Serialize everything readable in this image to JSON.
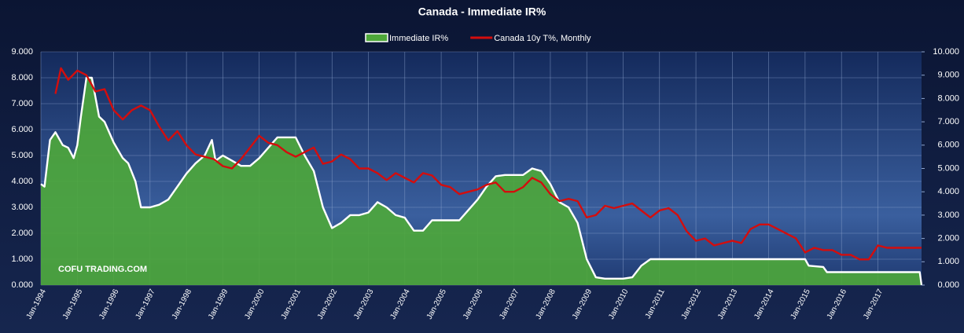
{
  "chart_data": {
    "type": "line",
    "title": "Canada - Immediate IR%",
    "watermark": "COFU TRADING.COM",
    "legend": "top",
    "grid": true,
    "xlim": [
      1994,
      2018.2
    ],
    "xticks": [
      {
        "value": 1994,
        "label": "Jan-1994"
      },
      {
        "value": 1995,
        "label": "Jan-1995"
      },
      {
        "value": 1996,
        "label": "Jan-1996"
      },
      {
        "value": 1997,
        "label": "Jan-1997"
      },
      {
        "value": 1998,
        "label": "Jan-1998"
      },
      {
        "value": 1999,
        "label": "Jan-1999"
      },
      {
        "value": 2000,
        "label": "Jan-2000"
      },
      {
        "value": 2001,
        "label": "Jan-2001"
      },
      {
        "value": 2002,
        "label": "Jan-2002"
      },
      {
        "value": 2003,
        "label": "Jan-2003"
      },
      {
        "value": 2004,
        "label": "Jan-2004"
      },
      {
        "value": 2005,
        "label": "Jan-2005"
      },
      {
        "value": 2006,
        "label": "Jan-2006"
      },
      {
        "value": 2007,
        "label": "Jan-2007"
      },
      {
        "value": 2008,
        "label": "Jan-2008"
      },
      {
        "value": 2009,
        "label": "Jan-2009"
      },
      {
        "value": 2010,
        "label": "Jan-2010"
      },
      {
        "value": 2011,
        "label": "Jan-2011"
      },
      {
        "value": 2012,
        "label": "Jan-2012"
      },
      {
        "value": 2013,
        "label": "Jan-2013"
      },
      {
        "value": 2014,
        "label": "Jan-2014"
      },
      {
        "value": 2015,
        "label": "Jan-2015"
      },
      {
        "value": 2016,
        "label": "Jan-2016"
      },
      {
        "value": 2017,
        "label": "Jan-2017"
      }
    ],
    "ylim": [
      0,
      9
    ],
    "yticks": [
      {
        "value": 0,
        "label": "0.000"
      },
      {
        "value": 1,
        "label": "1.000"
      },
      {
        "value": 2,
        "label": "2.000"
      },
      {
        "value": 3,
        "label": "3.000"
      },
      {
        "value": 4,
        "label": "4.000"
      },
      {
        "value": 5,
        "label": "5.000"
      },
      {
        "value": 6,
        "label": "6.000"
      },
      {
        "value": 7,
        "label": "7.000"
      },
      {
        "value": 8,
        "label": "8.000"
      },
      {
        "value": 9,
        "label": "9.000"
      }
    ],
    "y2lim": [
      0,
      10
    ],
    "y2ticks": [
      {
        "value": 0,
        "label": "0.000"
      },
      {
        "value": 1,
        "label": "1.000"
      },
      {
        "value": 2,
        "label": "2.000"
      },
      {
        "value": 3,
        "label": "3.000"
      },
      {
        "value": 4,
        "label": "4.000"
      },
      {
        "value": 5,
        "label": "5.000"
      },
      {
        "value": 6,
        "label": "6.000"
      },
      {
        "value": 7,
        "label": "7.000"
      },
      {
        "value": 8,
        "label": "8.000"
      },
      {
        "value": 9,
        "label": "9.000"
      },
      {
        "value": 10,
        "label": "10.000"
      }
    ],
    "series": [
      {
        "name": "Immediate IR%",
        "color": "#4ea83a",
        "line_color": "#ffffff",
        "fill": true,
        "x": [
          1994,
          1994.1,
          1994.25,
          1994.4,
          1994.6,
          1994.75,
          1994.9,
          1995,
          1995.1,
          1995.25,
          1995.4,
          1995.6,
          1995.75,
          1996,
          1996.25,
          1996.4,
          1996.6,
          1996.75,
          1997,
          1997.25,
          1997.5,
          1997.75,
          1998,
          1998.25,
          1998.5,
          1998.7,
          1998.8,
          1999,
          1999.25,
          1999.5,
          1999.75,
          2000,
          2000.25,
          2000.5,
          2000.75,
          2001,
          2001.25,
          2001.5,
          2001.75,
          2002,
          2002.25,
          2002.5,
          2002.75,
          2003,
          2003.25,
          2003.5,
          2003.75,
          2004,
          2004.25,
          2004.5,
          2004.75,
          2005,
          2005.25,
          2005.5,
          2005.75,
          2006,
          2006.25,
          2006.5,
          2006.75,
          2007,
          2007.25,
          2007.5,
          2007.75,
          2008,
          2008.25,
          2008.5,
          2008.75,
          2009,
          2009.25,
          2009.5,
          2009.75,
          2010,
          2010.25,
          2010.5,
          2010.75,
          2011,
          2015,
          2015.1,
          2015.5,
          2015.6,
          2016,
          2017,
          2018.15,
          2018.2
        ],
        "values": [
          3.9,
          3.8,
          5.6,
          5.9,
          5.4,
          5.3,
          4.9,
          5.4,
          6.5,
          8.0,
          8.0,
          6.5,
          6.3,
          5.5,
          4.9,
          4.7,
          4.0,
          3.0,
          3.0,
          3.1,
          3.3,
          3.8,
          4.3,
          4.7,
          5.0,
          5.6,
          4.8,
          5.0,
          4.8,
          4.6,
          4.6,
          4.9,
          5.3,
          5.7,
          5.7,
          5.7,
          5.0,
          4.4,
          3.0,
          2.2,
          2.4,
          2.7,
          2.7,
          2.8,
          3.2,
          3.0,
          2.7,
          2.6,
          2.1,
          2.1,
          2.5,
          2.5,
          2.5,
          2.5,
          2.9,
          3.3,
          3.8,
          4.2,
          4.25,
          4.25,
          4.25,
          4.5,
          4.4,
          3.9,
          3.2,
          3.0,
          2.4,
          1.0,
          0.3,
          0.25,
          0.25,
          0.25,
          0.3,
          0.75,
          1.0,
          1.0,
          1.0,
          0.75,
          0.7,
          0.5,
          0.5,
          0.5,
          0.5,
          0
        ]
      },
      {
        "name": "Canada 10y T%, Monthly",
        "color": "#d40d0d",
        "axis": "y2",
        "x": [
          1994.4,
          1994.55,
          1994.75,
          1995,
          1995.25,
          1995.5,
          1995.75,
          1996,
          1996.25,
          1996.5,
          1996.75,
          1997,
          1997.25,
          1997.5,
          1997.75,
          1998,
          1998.25,
          1998.5,
          1998.75,
          1999,
          1999.25,
          1999.5,
          1999.75,
          2000,
          2000.25,
          2000.5,
          2000.75,
          2001,
          2001.25,
          2001.5,
          2001.75,
          2002,
          2002.25,
          2002.5,
          2002.75,
          2003,
          2003.25,
          2003.5,
          2003.75,
          2004,
          2004.25,
          2004.5,
          2004.75,
          2005,
          2005.25,
          2005.5,
          2005.75,
          2006,
          2006.25,
          2006.5,
          2006.75,
          2007,
          2007.25,
          2007.5,
          2007.75,
          2008,
          2008.25,
          2008.5,
          2008.75,
          2009,
          2009.25,
          2009.5,
          2009.75,
          2010,
          2010.25,
          2010.5,
          2010.75,
          2011,
          2011.25,
          2011.5,
          2011.75,
          2012,
          2012.25,
          2012.5,
          2012.75,
          2013,
          2013.25,
          2013.5,
          2013.75,
          2014,
          2014.25,
          2014.5,
          2014.75,
          2015,
          2015.25,
          2015.5,
          2015.75,
          2016,
          2016.25,
          2016.5,
          2016.75,
          2017,
          2017.25,
          2017.5,
          2018.2
        ],
        "values": [
          8.2,
          9.3,
          8.8,
          9.2,
          9.0,
          8.3,
          8.4,
          7.5,
          7.1,
          7.5,
          7.7,
          7.5,
          6.8,
          6.2,
          6.6,
          6.0,
          5.6,
          5.5,
          5.4,
          5.1,
          5.0,
          5.4,
          5.9,
          6.4,
          6.1,
          6.0,
          5.7,
          5.5,
          5.7,
          5.9,
          5.2,
          5.3,
          5.6,
          5.4,
          5.0,
          5.0,
          4.8,
          4.5,
          4.8,
          4.6,
          4.4,
          4.8,
          4.7,
          4.3,
          4.2,
          3.9,
          4.0,
          4.1,
          4.3,
          4.4,
          4.0,
          4.0,
          4.2,
          4.6,
          4.4,
          3.9,
          3.6,
          3.7,
          3.6,
          2.9,
          3.0,
          3.4,
          3.3,
          3.4,
          3.5,
          3.2,
          2.9,
          3.2,
          3.3,
          3.0,
          2.3,
          1.9,
          2.0,
          1.7,
          1.8,
          1.9,
          1.8,
          2.4,
          2.6,
          2.6,
          2.4,
          2.2,
          2.0,
          1.4,
          1.6,
          1.5,
          1.5,
          1.3,
          1.3,
          1.1,
          1.1,
          1.7,
          1.6,
          1.6,
          1.6
        ]
      }
    ]
  }
}
